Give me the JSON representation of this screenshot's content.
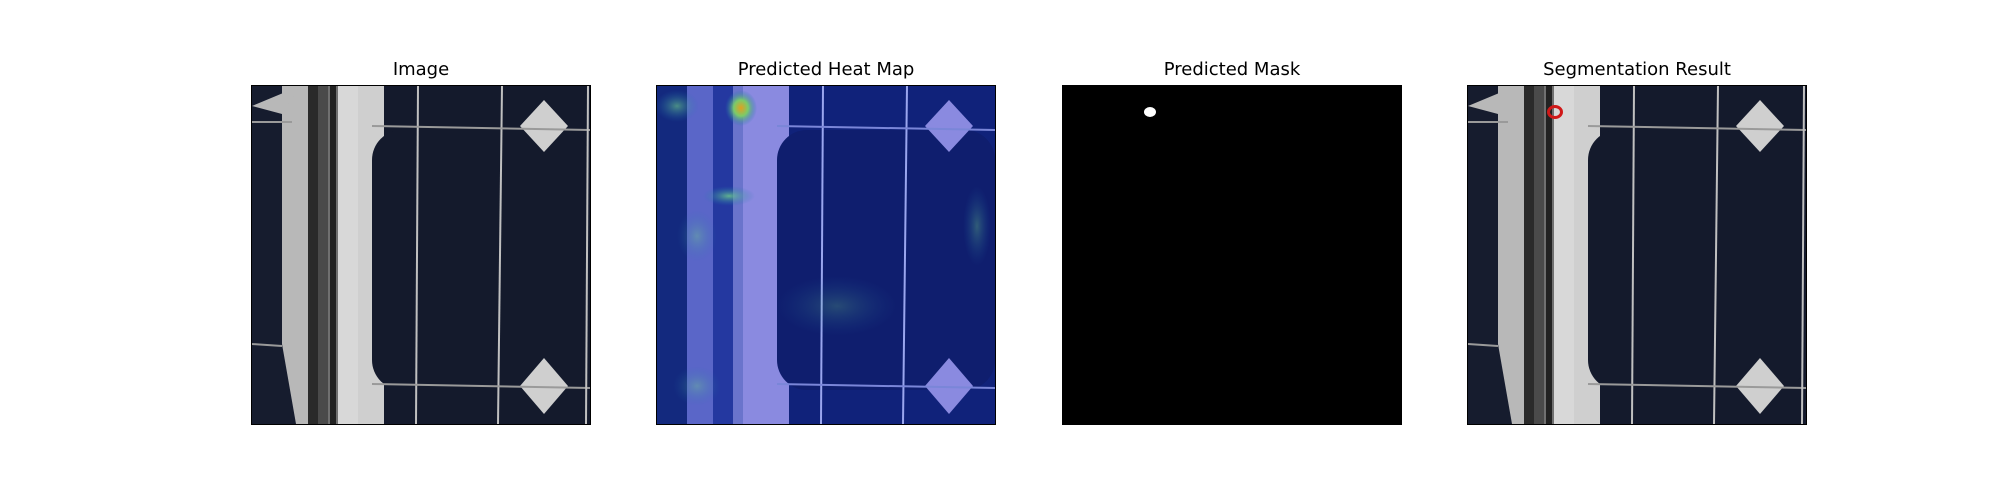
{
  "panels": [
    {
      "title": "Image"
    },
    {
      "title": "Predicted Heat Map"
    },
    {
      "title": "Predicted Mask"
    },
    {
      "title": "Segmentation Result"
    }
  ],
  "colors": {
    "cell_dark": "#141a2c",
    "cell_border": "#cfcfcf",
    "frame_metal": "#2a2a2a",
    "heatmap_base": "#10227a",
    "heatmap_light": "#8a8ae0",
    "heatmap_hot": "#e0a020",
    "mask_bg": "#000000",
    "mask_fg": "#ffffff",
    "contour": "#d01818"
  },
  "icons": {
    "defect_contour": "red-ring-contour"
  }
}
